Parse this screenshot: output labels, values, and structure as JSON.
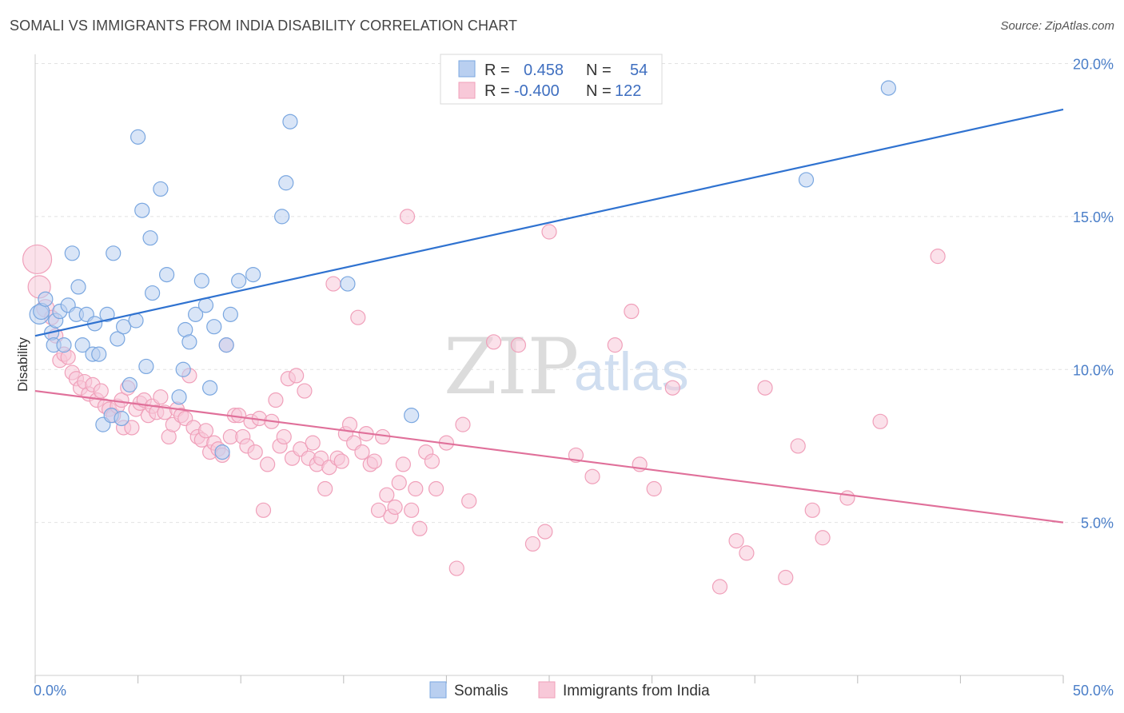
{
  "title": "SOMALI VS IMMIGRANTS FROM INDIA DISABILITY CORRELATION CHART",
  "source": "Source: ZipAtlas.com",
  "watermark": {
    "zip": "ZIP",
    "atlas": "atlas"
  },
  "chart_data": {
    "type": "scatter",
    "xlabel": "",
    "ylabel": "Disability",
    "xlim": [
      0,
      50
    ],
    "ylim": [
      0,
      20.5
    ],
    "x_tick_labels": [
      {
        "value": 0,
        "label": "0.0%"
      },
      {
        "value": 50,
        "label": "50.0%"
      }
    ],
    "y_tick_labels": [
      {
        "value": 5,
        "label": "5.0%"
      },
      {
        "value": 10,
        "label": "10.0%"
      },
      {
        "value": 15,
        "label": "15.0%"
      },
      {
        "value": 20,
        "label": "20.0%"
      }
    ],
    "grid": true,
    "legend_position": "top-center",
    "stats": [
      {
        "r_label": "R =",
        "r_value": "0.458",
        "n_label": "N =",
        "n_value": "54"
      },
      {
        "r_label": "R =",
        "r_value": "-0.400",
        "n_label": "N =",
        "n_value": "122"
      }
    ],
    "series": [
      {
        "name": "Somalis",
        "color": "#7aa7e0",
        "fill": "#b9cff0",
        "line_color": "#2f72d0",
        "trend": [
          [
            0,
            11.1
          ],
          [
            50,
            18.5
          ]
        ],
        "points": [
          [
            0.2,
            11.8,
            12
          ],
          [
            0.3,
            11.9,
            10
          ],
          [
            0.5,
            12.3,
            9
          ],
          [
            0.8,
            11.2,
            9
          ],
          [
            0.9,
            10.8,
            9
          ],
          [
            1.0,
            11.6,
            9
          ],
          [
            1.2,
            11.9,
            9
          ],
          [
            1.4,
            10.8,
            9
          ],
          [
            1.6,
            12.1,
            9
          ],
          [
            1.8,
            13.8,
            9
          ],
          [
            2.0,
            11.8,
            9
          ],
          [
            2.1,
            12.7,
            9
          ],
          [
            2.3,
            10.8,
            9
          ],
          [
            2.5,
            11.8,
            9
          ],
          [
            2.8,
            10.5,
            9
          ],
          [
            2.9,
            11.5,
            9
          ],
          [
            3.1,
            10.5,
            9
          ],
          [
            3.3,
            8.2,
            9
          ],
          [
            3.5,
            11.8,
            9
          ],
          [
            3.7,
            8.5,
            9
          ],
          [
            3.8,
            13.8,
            9
          ],
          [
            4.0,
            11.0,
            9
          ],
          [
            4.2,
            8.4,
            9
          ],
          [
            4.3,
            11.4,
            9
          ],
          [
            4.6,
            9.5,
            9
          ],
          [
            4.9,
            11.6,
            9
          ],
          [
            5.0,
            17.6,
            9
          ],
          [
            5.2,
            15.2,
            9
          ],
          [
            5.4,
            10.1,
            9
          ],
          [
            5.6,
            14.3,
            9
          ],
          [
            5.7,
            12.5,
            9
          ],
          [
            6.1,
            15.9,
            9
          ],
          [
            6.4,
            13.1,
            9
          ],
          [
            7.0,
            9.1,
            9
          ],
          [
            7.2,
            10.0,
            9
          ],
          [
            7.3,
            11.3,
            9
          ],
          [
            7.5,
            10.9,
            9
          ],
          [
            7.8,
            11.8,
            9
          ],
          [
            8.1,
            12.9,
            9
          ],
          [
            8.3,
            12.1,
            9
          ],
          [
            8.5,
            9.4,
            9
          ],
          [
            8.7,
            11.4,
            9
          ],
          [
            9.1,
            7.3,
            9
          ],
          [
            9.3,
            10.8,
            9
          ],
          [
            9.5,
            11.8,
            9
          ],
          [
            9.9,
            12.9,
            9
          ],
          [
            10.6,
            13.1,
            9
          ],
          [
            12.0,
            15.0,
            9
          ],
          [
            12.2,
            16.1,
            9
          ],
          [
            12.4,
            18.1,
            9
          ],
          [
            15.2,
            12.8,
            9
          ],
          [
            18.3,
            8.5,
            9
          ],
          [
            37.5,
            16.2,
            9
          ],
          [
            41.5,
            19.2,
            9
          ]
        ]
      },
      {
        "name": "Immigrants from India",
        "color": "#f0a0ba",
        "fill": "#f8c8d8",
        "line_color": "#e0709a",
        "trend": [
          [
            0,
            9.3
          ],
          [
            50,
            5.0
          ]
        ],
        "points": [
          [
            0.1,
            13.6,
            18
          ],
          [
            0.2,
            12.7,
            14
          ],
          [
            0.5,
            12.0,
            11
          ],
          [
            0.8,
            11.7,
            9
          ],
          [
            1.0,
            11.1,
            9
          ],
          [
            1.2,
            10.3,
            9
          ],
          [
            1.4,
            10.5,
            9
          ],
          [
            1.6,
            10.4,
            9
          ],
          [
            1.8,
            9.9,
            9
          ],
          [
            2.0,
            9.7,
            9
          ],
          [
            2.2,
            9.4,
            9
          ],
          [
            2.4,
            9.6,
            9
          ],
          [
            2.6,
            9.2,
            9
          ],
          [
            2.8,
            9.5,
            9
          ],
          [
            3.0,
            9.0,
            9
          ],
          [
            3.2,
            9.3,
            9
          ],
          [
            3.4,
            8.8,
            9
          ],
          [
            3.6,
            8.7,
            9
          ],
          [
            3.8,
            8.5,
            9
          ],
          [
            4.0,
            8.8,
            9
          ],
          [
            4.2,
            9.0,
            9
          ],
          [
            4.3,
            8.1,
            9
          ],
          [
            4.5,
            9.4,
            9
          ],
          [
            4.7,
            8.1,
            9
          ],
          [
            4.9,
            8.7,
            9
          ],
          [
            5.1,
            8.9,
            9
          ],
          [
            5.3,
            9.0,
            9
          ],
          [
            5.5,
            8.5,
            9
          ],
          [
            5.7,
            8.8,
            9
          ],
          [
            5.9,
            8.6,
            9
          ],
          [
            6.1,
            9.1,
            9
          ],
          [
            6.3,
            8.6,
            9
          ],
          [
            6.5,
            7.8,
            9
          ],
          [
            6.7,
            8.2,
            9
          ],
          [
            6.9,
            8.7,
            9
          ],
          [
            7.1,
            8.5,
            9
          ],
          [
            7.3,
            8.4,
            9
          ],
          [
            7.5,
            9.8,
            9
          ],
          [
            7.7,
            8.1,
            9
          ],
          [
            7.9,
            7.8,
            9
          ],
          [
            8.1,
            7.7,
            9
          ],
          [
            8.3,
            8.0,
            9
          ],
          [
            8.5,
            7.3,
            9
          ],
          [
            8.7,
            7.6,
            9
          ],
          [
            8.9,
            7.4,
            9
          ],
          [
            9.1,
            7.2,
            9
          ],
          [
            9.3,
            10.8,
            9
          ],
          [
            9.5,
            7.8,
            9
          ],
          [
            9.7,
            8.5,
            9
          ],
          [
            9.9,
            8.5,
            9
          ],
          [
            10.1,
            7.8,
            9
          ],
          [
            10.3,
            7.5,
            9
          ],
          [
            10.5,
            8.3,
            9
          ],
          [
            10.7,
            7.3,
            9
          ],
          [
            10.9,
            8.4,
            9
          ],
          [
            11.1,
            5.4,
            9
          ],
          [
            11.3,
            6.9,
            9
          ],
          [
            11.5,
            8.3,
            9
          ],
          [
            11.7,
            9.0,
            9
          ],
          [
            11.9,
            7.5,
            9
          ],
          [
            12.1,
            7.8,
            9
          ],
          [
            12.3,
            9.7,
            9
          ],
          [
            12.5,
            7.1,
            9
          ],
          [
            12.7,
            9.8,
            9
          ],
          [
            12.9,
            7.4,
            9
          ],
          [
            13.1,
            9.3,
            9
          ],
          [
            13.3,
            7.1,
            9
          ],
          [
            13.5,
            7.6,
            9
          ],
          [
            13.7,
            6.9,
            9
          ],
          [
            13.9,
            7.1,
            9
          ],
          [
            14.1,
            6.1,
            9
          ],
          [
            14.3,
            6.8,
            9
          ],
          [
            14.5,
            12.8,
            9
          ],
          [
            14.7,
            7.1,
            9
          ],
          [
            14.9,
            7.0,
            9
          ],
          [
            15.1,
            7.9,
            9
          ],
          [
            15.3,
            8.2,
            9
          ],
          [
            15.5,
            7.6,
            9
          ],
          [
            15.7,
            11.7,
            9
          ],
          [
            15.9,
            7.3,
            9
          ],
          [
            16.1,
            7.9,
            9
          ],
          [
            16.3,
            6.9,
            9
          ],
          [
            16.5,
            7.0,
            9
          ],
          [
            16.7,
            5.4,
            9
          ],
          [
            16.9,
            7.8,
            9
          ],
          [
            17.1,
            5.9,
            9
          ],
          [
            17.3,
            5.2,
            9
          ],
          [
            17.5,
            5.5,
            9
          ],
          [
            17.7,
            6.3,
            9
          ],
          [
            17.9,
            6.9,
            9
          ],
          [
            18.1,
            15.0,
            9
          ],
          [
            18.3,
            5.4,
            9
          ],
          [
            18.5,
            6.1,
            9
          ],
          [
            18.7,
            4.8,
            9
          ],
          [
            19.0,
            7.3,
            9
          ],
          [
            19.3,
            7.0,
            9
          ],
          [
            19.5,
            6.1,
            9
          ],
          [
            20.0,
            7.6,
            9
          ],
          [
            20.5,
            3.5,
            9
          ],
          [
            20.8,
            8.2,
            9
          ],
          [
            21.1,
            5.7,
            9
          ],
          [
            22.3,
            10.9,
            9
          ],
          [
            23.5,
            10.8,
            9
          ],
          [
            24.2,
            4.3,
            9
          ],
          [
            24.8,
            4.7,
            9
          ],
          [
            25.0,
            14.5,
            9
          ],
          [
            26.3,
            7.2,
            9
          ],
          [
            27.1,
            6.5,
            9
          ],
          [
            28.2,
            10.8,
            9
          ],
          [
            29.0,
            11.9,
            9
          ],
          [
            29.4,
            6.9,
            9
          ],
          [
            30.1,
            6.1,
            9
          ],
          [
            31.0,
            9.4,
            9
          ],
          [
            33.3,
            2.9,
            9
          ],
          [
            34.1,
            4.4,
            9
          ],
          [
            34.6,
            4.0,
            9
          ],
          [
            35.5,
            9.4,
            9
          ],
          [
            36.5,
            3.2,
            9
          ],
          [
            37.1,
            7.5,
            9
          ],
          [
            37.8,
            5.4,
            9
          ],
          [
            38.3,
            4.5,
            9
          ],
          [
            39.5,
            5.8,
            9
          ],
          [
            41.1,
            8.3,
            9
          ],
          [
            43.9,
            13.7,
            9
          ]
        ]
      }
    ]
  }
}
